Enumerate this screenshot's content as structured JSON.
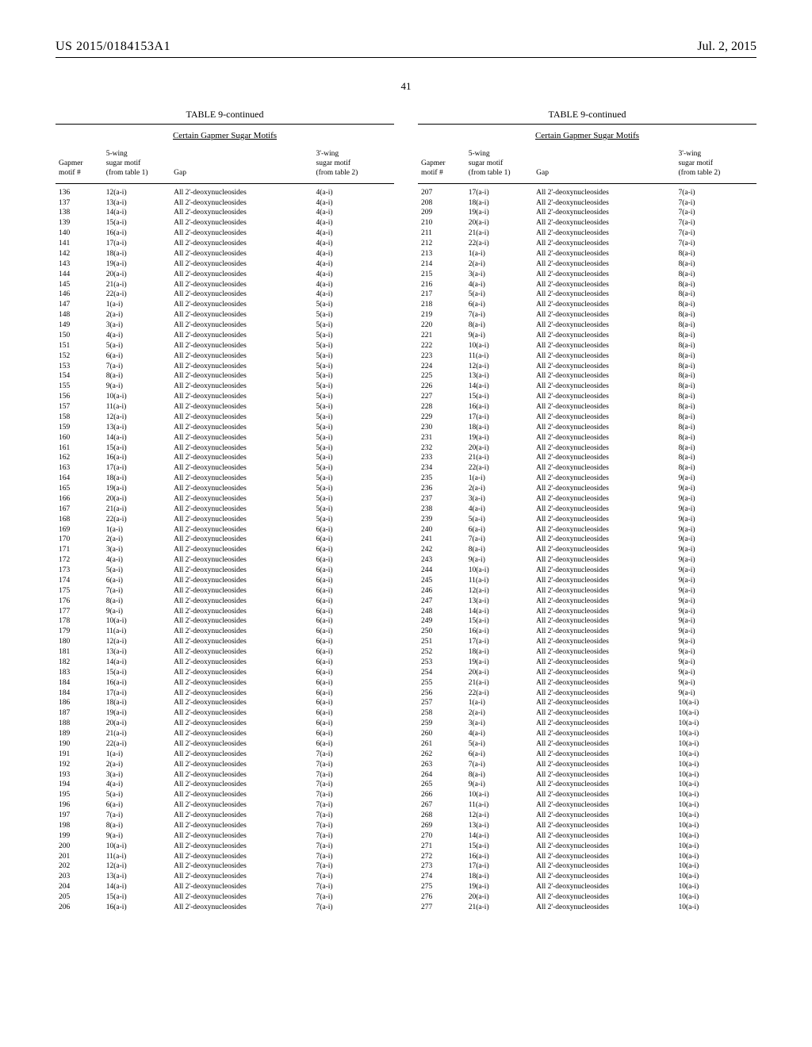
{
  "header": {
    "publication": "US 2015/0184153A1",
    "date": "Jul. 2, 2015"
  },
  "pageNumber": "41",
  "tableTitle": "TABLE 9-continued",
  "tableSubtitle": "Certain Gapmer Sugar Motifs",
  "columns": {
    "c1": "Gapmer motif #",
    "c2a": "5-wing",
    "c2b": "sugar motif",
    "c2c": "(from table 1)",
    "c3": "Gap",
    "c4a": "3'-wing",
    "c4b": "sugar motif",
    "c4c": "(from table 2)"
  },
  "gapText": "All 2'-deoxynucleosides",
  "leftRows": [
    {
      "n": "136",
      "w5": "12(a-i)",
      "w3": "4(a-i)"
    },
    {
      "n": "137",
      "w5": "13(a-i)",
      "w3": "4(a-i)"
    },
    {
      "n": "138",
      "w5": "14(a-i)",
      "w3": "4(a-i)"
    },
    {
      "n": "139",
      "w5": "15(a-i)",
      "w3": "4(a-i)"
    },
    {
      "n": "140",
      "w5": "16(a-i)",
      "w3": "4(a-i)"
    },
    {
      "n": "141",
      "w5": "17(a-i)",
      "w3": "4(a-i)"
    },
    {
      "n": "142",
      "w5": "18(a-i)",
      "w3": "4(a-i)"
    },
    {
      "n": "143",
      "w5": "19(a-i)",
      "w3": "4(a-i)"
    },
    {
      "n": "144",
      "w5": "20(a-i)",
      "w3": "4(a-i)"
    },
    {
      "n": "145",
      "w5": "21(a-i)",
      "w3": "4(a-i)"
    },
    {
      "n": "146",
      "w5": "22(a-i)",
      "w3": "4(a-i)"
    },
    {
      "n": "147",
      "w5": "1(a-i)",
      "w3": "5(a-i)"
    },
    {
      "n": "148",
      "w5": "2(a-i)",
      "w3": "5(a-i)"
    },
    {
      "n": "149",
      "w5": "3(a-i)",
      "w3": "5(a-i)"
    },
    {
      "n": "150",
      "w5": "4(a-i)",
      "w3": "5(a-i)"
    },
    {
      "n": "151",
      "w5": "5(a-i)",
      "w3": "5(a-i)"
    },
    {
      "n": "152",
      "w5": "6(a-i)",
      "w3": "5(a-i)"
    },
    {
      "n": "153",
      "w5": "7(a-i)",
      "w3": "5(a-i)"
    },
    {
      "n": "154",
      "w5": "8(a-i)",
      "w3": "5(a-i)"
    },
    {
      "n": "155",
      "w5": "9(a-i)",
      "w3": "5(a-i)"
    },
    {
      "n": "156",
      "w5": "10(a-i)",
      "w3": "5(a-i)"
    },
    {
      "n": "157",
      "w5": "11(a-i)",
      "w3": "5(a-i)"
    },
    {
      "n": "158",
      "w5": "12(a-i)",
      "w3": "5(a-i)"
    },
    {
      "n": "159",
      "w5": "13(a-i)",
      "w3": "5(a-i)"
    },
    {
      "n": "160",
      "w5": "14(a-i)",
      "w3": "5(a-i)"
    },
    {
      "n": "161",
      "w5": "15(a-i)",
      "w3": "5(a-i)"
    },
    {
      "n": "162",
      "w5": "16(a-i)",
      "w3": "5(a-i)"
    },
    {
      "n": "163",
      "w5": "17(a-i)",
      "w3": "5(a-i)"
    },
    {
      "n": "164",
      "w5": "18(a-i)",
      "w3": "5(a-i)"
    },
    {
      "n": "165",
      "w5": "19(a-i)",
      "w3": "5(a-i)"
    },
    {
      "n": "166",
      "w5": "20(a-i)",
      "w3": "5(a-i)"
    },
    {
      "n": "167",
      "w5": "21(a-i)",
      "w3": "5(a-i)"
    },
    {
      "n": "168",
      "w5": "22(a-i)",
      "w3": "5(a-i)"
    },
    {
      "n": "169",
      "w5": "1(a-i)",
      "w3": "6(a-i)"
    },
    {
      "n": "170",
      "w5": "2(a-i)",
      "w3": "6(a-i)"
    },
    {
      "n": "171",
      "w5": "3(a-i)",
      "w3": "6(a-i)"
    },
    {
      "n": "172",
      "w5": "4(a-i)",
      "w3": "6(a-i)"
    },
    {
      "n": "173",
      "w5": "5(a-i)",
      "w3": "6(a-i)"
    },
    {
      "n": "174",
      "w5": "6(a-i)",
      "w3": "6(a-i)"
    },
    {
      "n": "175",
      "w5": "7(a-i)",
      "w3": "6(a-i)"
    },
    {
      "n": "176",
      "w5": "8(a-i)",
      "w3": "6(a-i)"
    },
    {
      "n": "177",
      "w5": "9(a-i)",
      "w3": "6(a-i)"
    },
    {
      "n": "178",
      "w5": "10(a-i)",
      "w3": "6(a-i)"
    },
    {
      "n": "179",
      "w5": "11(a-i)",
      "w3": "6(a-i)"
    },
    {
      "n": "180",
      "w5": "12(a-i)",
      "w3": "6(a-i)"
    },
    {
      "n": "181",
      "w5": "13(a-i)",
      "w3": "6(a-i)"
    },
    {
      "n": "182",
      "w5": "14(a-i)",
      "w3": "6(a-i)"
    },
    {
      "n": "183",
      "w5": "15(a-i)",
      "w3": "6(a-i)"
    },
    {
      "n": "184",
      "w5": "16(a-i)",
      "w3": "6(a-i)"
    },
    {
      "n": "184",
      "w5": "17(a-i)",
      "w3": "6(a-i)"
    },
    {
      "n": "186",
      "w5": "18(a-i)",
      "w3": "6(a-i)"
    },
    {
      "n": "187",
      "w5": "19(a-i)",
      "w3": "6(a-i)"
    },
    {
      "n": "188",
      "w5": "20(a-i)",
      "w3": "6(a-i)"
    },
    {
      "n": "189",
      "w5": "21(a-i)",
      "w3": "6(a-i)"
    },
    {
      "n": "190",
      "w5": "22(a-i)",
      "w3": "6(a-i)"
    },
    {
      "n": "191",
      "w5": "1(a-i)",
      "w3": "7(a-i)"
    },
    {
      "n": "192",
      "w5": "2(a-i)",
      "w3": "7(a-i)"
    },
    {
      "n": "193",
      "w5": "3(a-i)",
      "w3": "7(a-i)"
    },
    {
      "n": "194",
      "w5": "4(a-i)",
      "w3": "7(a-i)"
    },
    {
      "n": "195",
      "w5": "5(a-i)",
      "w3": "7(a-i)"
    },
    {
      "n": "196",
      "w5": "6(a-i)",
      "w3": "7(a-i)"
    },
    {
      "n": "197",
      "w5": "7(a-i)",
      "w3": "7(a-i)"
    },
    {
      "n": "198",
      "w5": "8(a-i)",
      "w3": "7(a-i)"
    },
    {
      "n": "199",
      "w5": "9(a-i)",
      "w3": "7(a-i)"
    },
    {
      "n": "200",
      "w5": "10(a-i)",
      "w3": "7(a-i)"
    },
    {
      "n": "201",
      "w5": "11(a-i)",
      "w3": "7(a-i)"
    },
    {
      "n": "202",
      "w5": "12(a-i)",
      "w3": "7(a-i)"
    },
    {
      "n": "203",
      "w5": "13(a-i)",
      "w3": "7(a-i)"
    },
    {
      "n": "204",
      "w5": "14(a-i)",
      "w3": "7(a-i)"
    },
    {
      "n": "205",
      "w5": "15(a-i)",
      "w3": "7(a-i)"
    },
    {
      "n": "206",
      "w5": "16(a-i)",
      "w3": "7(a-i)"
    }
  ],
  "rightRows": [
    {
      "n": "207",
      "w5": "17(a-i)",
      "w3": "7(a-i)"
    },
    {
      "n": "208",
      "w5": "18(a-i)",
      "w3": "7(a-i)"
    },
    {
      "n": "209",
      "w5": "19(a-i)",
      "w3": "7(a-i)"
    },
    {
      "n": "210",
      "w5": "20(a-i)",
      "w3": "7(a-i)"
    },
    {
      "n": "211",
      "w5": "21(a-i)",
      "w3": "7(a-i)"
    },
    {
      "n": "212",
      "w5": "22(a-i)",
      "w3": "7(a-i)"
    },
    {
      "n": "213",
      "w5": "1(a-i)",
      "w3": "8(a-i)"
    },
    {
      "n": "214",
      "w5": "2(a-i)",
      "w3": "8(a-i)"
    },
    {
      "n": "215",
      "w5": "3(a-i)",
      "w3": "8(a-i)"
    },
    {
      "n": "216",
      "w5": "4(a-i)",
      "w3": "8(a-i)"
    },
    {
      "n": "217",
      "w5": "5(a-i)",
      "w3": "8(a-i)"
    },
    {
      "n": "218",
      "w5": "6(a-i)",
      "w3": "8(a-i)"
    },
    {
      "n": "219",
      "w5": "7(a-i)",
      "w3": "8(a-i)"
    },
    {
      "n": "220",
      "w5": "8(a-i)",
      "w3": "8(a-i)"
    },
    {
      "n": "221",
      "w5": "9(a-i)",
      "w3": "8(a-i)"
    },
    {
      "n": "222",
      "w5": "10(a-i)",
      "w3": "8(a-i)"
    },
    {
      "n": "223",
      "w5": "11(a-i)",
      "w3": "8(a-i)"
    },
    {
      "n": "224",
      "w5": "12(a-i)",
      "w3": "8(a-i)"
    },
    {
      "n": "225",
      "w5": "13(a-i)",
      "w3": "8(a-i)"
    },
    {
      "n": "226",
      "w5": "14(a-i)",
      "w3": "8(a-i)"
    },
    {
      "n": "227",
      "w5": "15(a-i)",
      "w3": "8(a-i)"
    },
    {
      "n": "228",
      "w5": "16(a-i)",
      "w3": "8(a-i)"
    },
    {
      "n": "229",
      "w5": "17(a-i)",
      "w3": "8(a-i)"
    },
    {
      "n": "230",
      "w5": "18(a-i)",
      "w3": "8(a-i)"
    },
    {
      "n": "231",
      "w5": "19(a-i)",
      "w3": "8(a-i)"
    },
    {
      "n": "232",
      "w5": "20(a-i)",
      "w3": "8(a-i)"
    },
    {
      "n": "233",
      "w5": "21(a-i)",
      "w3": "8(a-i)"
    },
    {
      "n": "234",
      "w5": "22(a-i)",
      "w3": "8(a-i)"
    },
    {
      "n": "235",
      "w5": "1(a-i)",
      "w3": "9(a-i)"
    },
    {
      "n": "236",
      "w5": "2(a-i)",
      "w3": "9(a-i)"
    },
    {
      "n": "237",
      "w5": "3(a-i)",
      "w3": "9(a-i)"
    },
    {
      "n": "238",
      "w5": "4(a-i)",
      "w3": "9(a-i)"
    },
    {
      "n": "239",
      "w5": "5(a-i)",
      "w3": "9(a-i)"
    },
    {
      "n": "240",
      "w5": "6(a-i)",
      "w3": "9(a-i)"
    },
    {
      "n": "241",
      "w5": "7(a-i)",
      "w3": "9(a-i)"
    },
    {
      "n": "242",
      "w5": "8(a-i)",
      "w3": "9(a-i)"
    },
    {
      "n": "243",
      "w5": "9(a-i)",
      "w3": "9(a-i)"
    },
    {
      "n": "244",
      "w5": "10(a-i)",
      "w3": "9(a-i)"
    },
    {
      "n": "245",
      "w5": "11(a-i)",
      "w3": "9(a-i)"
    },
    {
      "n": "246",
      "w5": "12(a-i)",
      "w3": "9(a-i)"
    },
    {
      "n": "247",
      "w5": "13(a-i)",
      "w3": "9(a-i)"
    },
    {
      "n": "248",
      "w5": "14(a-i)",
      "w3": "9(a-i)"
    },
    {
      "n": "249",
      "w5": "15(a-i)",
      "w3": "9(a-i)"
    },
    {
      "n": "250",
      "w5": "16(a-i)",
      "w3": "9(a-i)"
    },
    {
      "n": "251",
      "w5": "17(a-i)",
      "w3": "9(a-i)"
    },
    {
      "n": "252",
      "w5": "18(a-i)",
      "w3": "9(a-i)"
    },
    {
      "n": "253",
      "w5": "19(a-i)",
      "w3": "9(a-i)"
    },
    {
      "n": "254",
      "w5": "20(a-i)",
      "w3": "9(a-i)"
    },
    {
      "n": "255",
      "w5": "21(a-i)",
      "w3": "9(a-i)"
    },
    {
      "n": "256",
      "w5": "22(a-i)",
      "w3": "9(a-i)"
    },
    {
      "n": "257",
      "w5": "1(a-i)",
      "w3": "10(a-i)"
    },
    {
      "n": "258",
      "w5": "2(a-i)",
      "w3": "10(a-i)"
    },
    {
      "n": "259",
      "w5": "3(a-i)",
      "w3": "10(a-i)"
    },
    {
      "n": "260",
      "w5": "4(a-i)",
      "w3": "10(a-i)"
    },
    {
      "n": "261",
      "w5": "5(a-i)",
      "w3": "10(a-i)"
    },
    {
      "n": "262",
      "w5": "6(a-i)",
      "w3": "10(a-i)"
    },
    {
      "n": "263",
      "w5": "7(a-i)",
      "w3": "10(a-i)"
    },
    {
      "n": "264",
      "w5": "8(a-i)",
      "w3": "10(a-i)"
    },
    {
      "n": "265",
      "w5": "9(a-i)",
      "w3": "10(a-i)"
    },
    {
      "n": "266",
      "w5": "10(a-i)",
      "w3": "10(a-i)"
    },
    {
      "n": "267",
      "w5": "11(a-i)",
      "w3": "10(a-i)"
    },
    {
      "n": "268",
      "w5": "12(a-i)",
      "w3": "10(a-i)"
    },
    {
      "n": "269",
      "w5": "13(a-i)",
      "w3": "10(a-i)"
    },
    {
      "n": "270",
      "w5": "14(a-i)",
      "w3": "10(a-i)"
    },
    {
      "n": "271",
      "w5": "15(a-i)",
      "w3": "10(a-i)"
    },
    {
      "n": "272",
      "w5": "16(a-i)",
      "w3": "10(a-i)"
    },
    {
      "n": "273",
      "w5": "17(a-i)",
      "w3": "10(a-i)"
    },
    {
      "n": "274",
      "w5": "18(a-i)",
      "w3": "10(a-i)"
    },
    {
      "n": "275",
      "w5": "19(a-i)",
      "w3": "10(a-i)"
    },
    {
      "n": "276",
      "w5": "20(a-i)",
      "w3": "10(a-i)"
    },
    {
      "n": "277",
      "w5": "21(a-i)",
      "w3": "10(a-i)"
    }
  ]
}
